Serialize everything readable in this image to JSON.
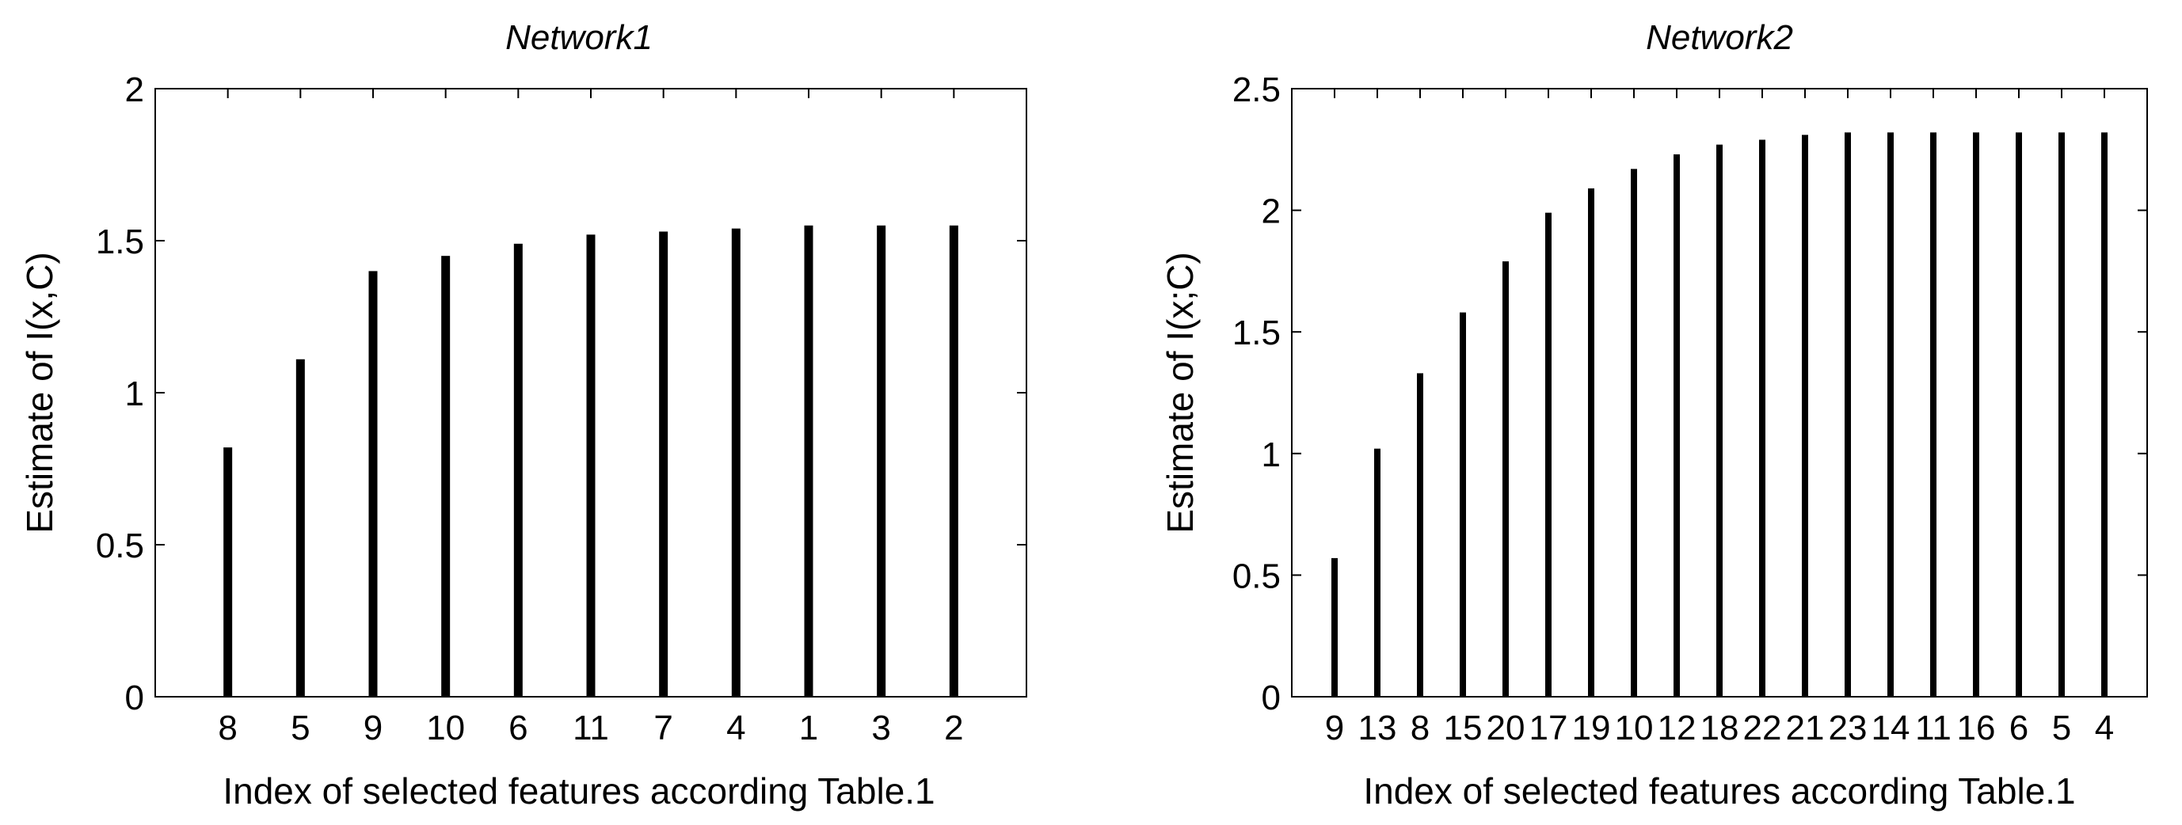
{
  "chart_data": [
    {
      "type": "bar",
      "title": "Network1",
      "xlabel": "Index of selected features according Table.1",
      "ylabel": "Estimate of I(x,C)",
      "categories": [
        "8",
        "5",
        "9",
        "10",
        "6",
        "11",
        "7",
        "4",
        "1",
        "3",
        "2"
      ],
      "values": [
        0.82,
        1.11,
        1.4,
        1.45,
        1.49,
        1.52,
        1.53,
        1.54,
        1.55,
        1.55,
        1.55
      ],
      "ylim": [
        0,
        2
      ],
      "yticks": [
        "0",
        "0.5",
        "1",
        "1.5",
        "2"
      ],
      "grid": false,
      "bar_color": "#000000"
    },
    {
      "type": "bar",
      "title": "Network2",
      "xlabel": "Index of selected features according Table.1",
      "ylabel": "Estimate of I(x;C)",
      "categories": [
        "9",
        "13",
        "8",
        "15",
        "20",
        "17",
        "19",
        "10",
        "12",
        "18",
        "22",
        "21",
        "23",
        "14",
        "11",
        "16",
        "6",
        "5",
        "4"
      ],
      "values": [
        0.57,
        1.02,
        1.33,
        1.58,
        1.79,
        1.99,
        2.09,
        2.17,
        2.23,
        2.27,
        2.29,
        2.31,
        2.32,
        2.32,
        2.32,
        2.32,
        2.32,
        2.32,
        2.32
      ],
      "ylim": [
        0,
        2.5
      ],
      "yticks": [
        "0",
        "0.5",
        "1",
        "1.5",
        "2",
        "2.5"
      ],
      "grid": false,
      "bar_color": "#000000"
    }
  ]
}
